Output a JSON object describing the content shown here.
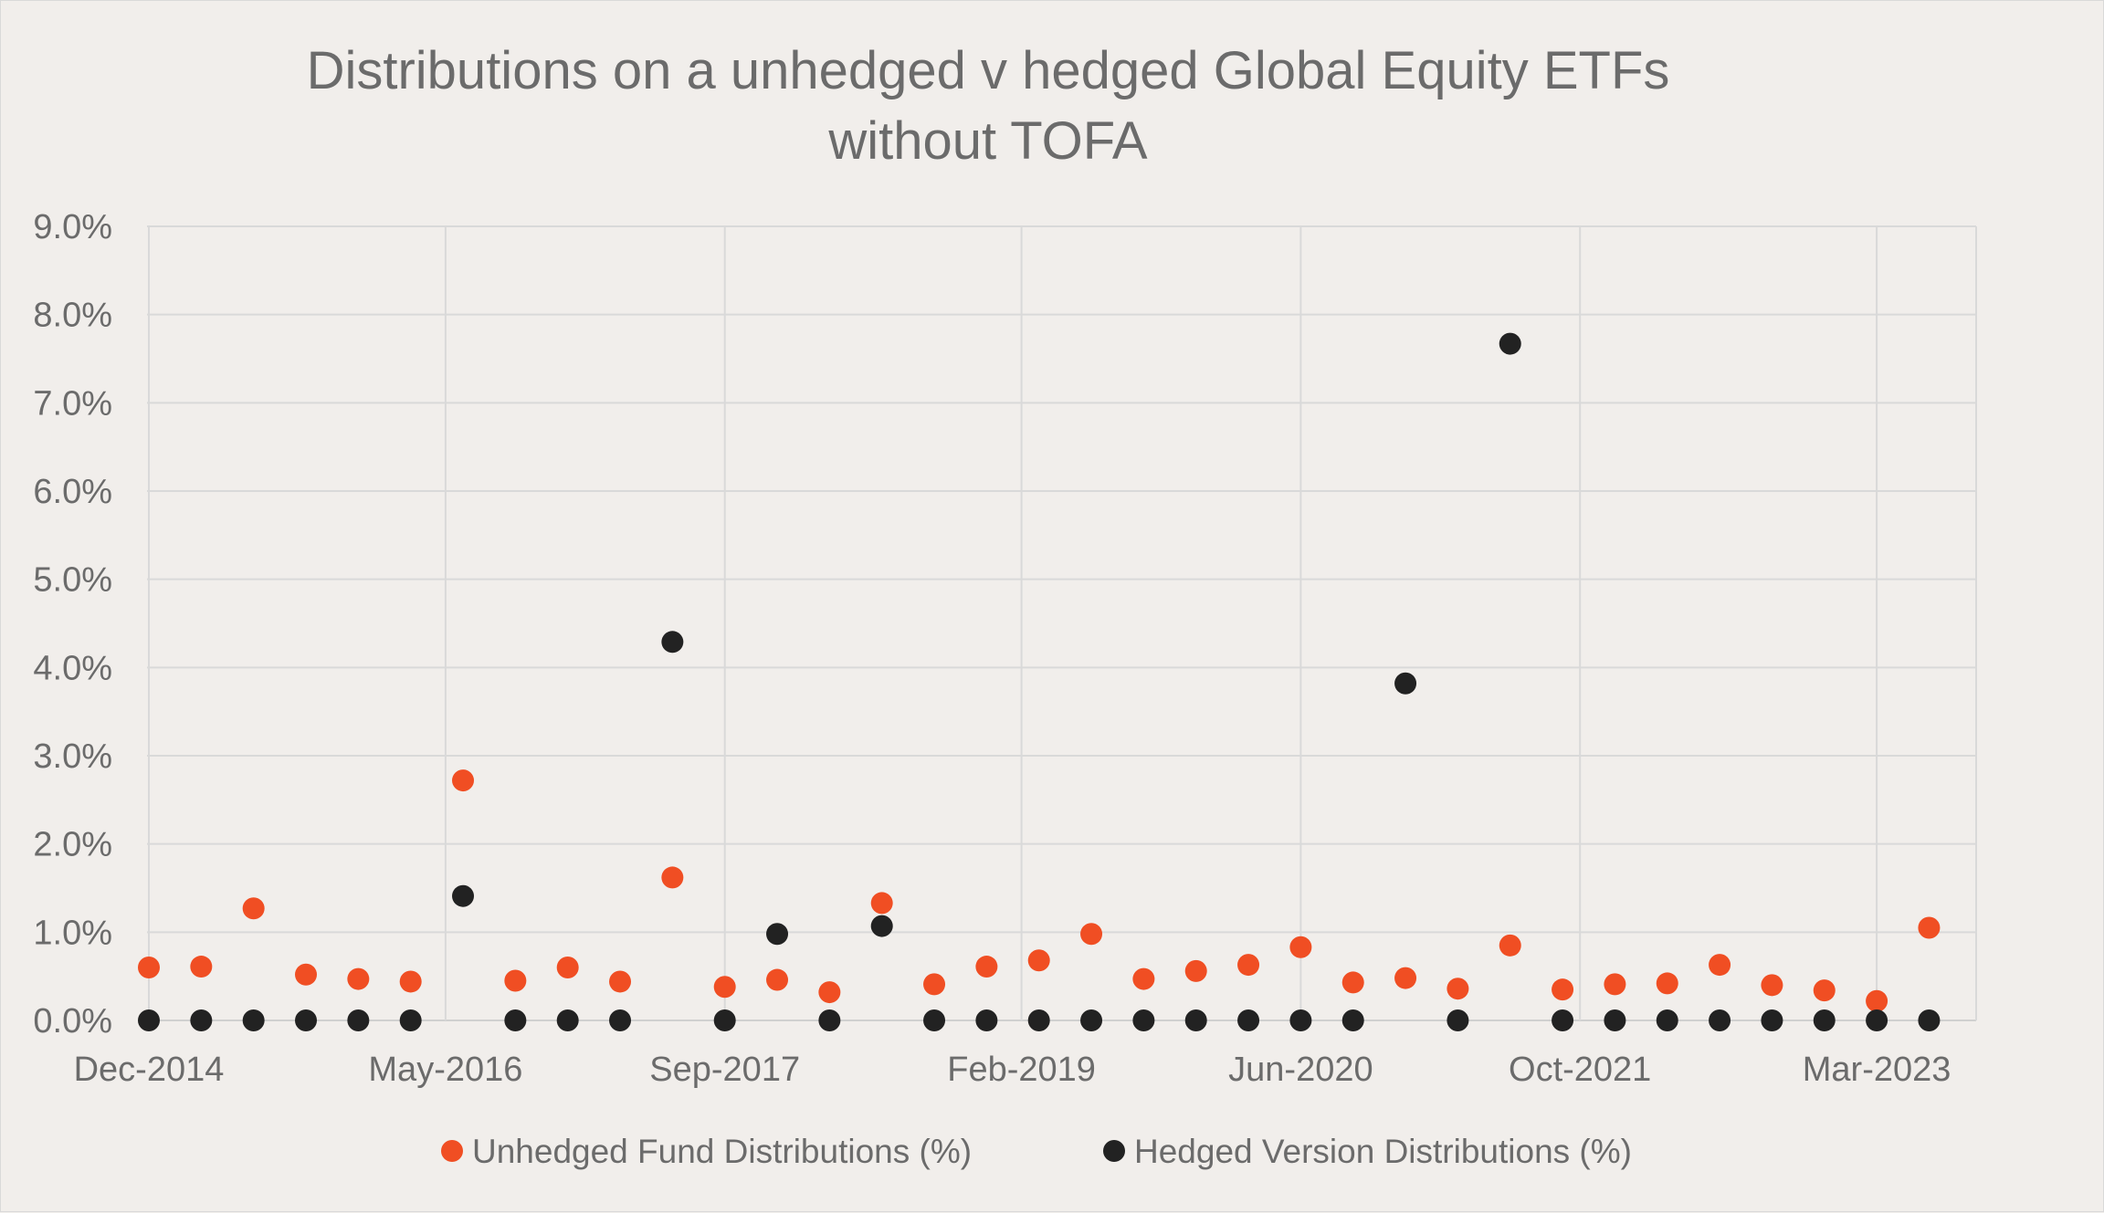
{
  "chart_data": {
    "type": "scatter",
    "title": [
      "Distributions on a unhedged v hedged Global Equity ETFs",
      "without TOFA"
    ],
    "xlabel": "",
    "ylabel": "",
    "ylim": [
      0,
      9
    ],
    "yticks": [
      "0.0%",
      "1.0%",
      "2.0%",
      "3.0%",
      "4.0%",
      "5.0%",
      "6.0%",
      "7.0%",
      "8.0%",
      "9.0%"
    ],
    "xticks": [
      "Dec-2014",
      "May-2016",
      "Sep-2017",
      "Feb-2019",
      "Jun-2020",
      "Oct-2021",
      "Mar-2023"
    ],
    "x_unit": "quarter",
    "x_start": "Dec-2014",
    "grid": "both",
    "legend_position": "bottom",
    "series": [
      {
        "name": "Unhedged Fund Distributions (%)",
        "color": "#f04e23",
        "x": [
          "Dec-2014",
          "Mar-2015",
          "Jun-2015",
          "Sep-2015",
          "Dec-2015",
          "Mar-2016",
          "Jun-2016",
          "Sep-2016",
          "Dec-2016",
          "Mar-2017",
          "Jun-2017",
          "Sep-2017",
          "Dec-2017",
          "Mar-2018",
          "Jun-2018",
          "Sep-2018",
          "Dec-2018",
          "Mar-2019",
          "Jun-2019",
          "Sep-2019",
          "Dec-2019",
          "Mar-2020",
          "Jun-2020",
          "Sep-2020",
          "Dec-2020",
          "Mar-2021",
          "Jun-2021",
          "Sep-2021",
          "Dec-2021",
          "Mar-2022",
          "Jun-2022",
          "Sep-2022",
          "Dec-2022",
          "Mar-2023",
          "Jun-2023"
        ],
        "values": [
          0.6,
          0.61,
          1.27,
          0.52,
          0.47,
          0.44,
          2.72,
          0.45,
          0.6,
          0.44,
          1.62,
          0.38,
          0.46,
          0.32,
          1.33,
          0.41,
          0.61,
          0.68,
          0.98,
          0.47,
          0.56,
          0.63,
          0.83,
          0.43,
          0.48,
          0.36,
          0.85,
          0.35,
          0.41,
          0.42,
          0.63,
          0.4,
          0.34,
          0.22,
          1.05
        ]
      },
      {
        "name": "Hedged Version Distributions (%)",
        "color": "#222222",
        "x": [
          "Dec-2014",
          "Mar-2015",
          "Jun-2015",
          "Sep-2015",
          "Dec-2015",
          "Mar-2016",
          "Jun-2016",
          "Sep-2016",
          "Dec-2016",
          "Mar-2017",
          "Jun-2017",
          "Sep-2017",
          "Dec-2017",
          "Mar-2018",
          "Jun-2018",
          "Sep-2018",
          "Dec-2018",
          "Mar-2019",
          "Jun-2019",
          "Sep-2019",
          "Dec-2019",
          "Mar-2020",
          "Jun-2020",
          "Sep-2020",
          "Dec-2020",
          "Mar-2021",
          "Jun-2021",
          "Sep-2021",
          "Dec-2021",
          "Mar-2022",
          "Jun-2022",
          "Sep-2022",
          "Dec-2022",
          "Mar-2023",
          "Jun-2023"
        ],
        "values": [
          0.0,
          0.0,
          0.0,
          0.0,
          0.0,
          0.0,
          1.41,
          0.0,
          0.0,
          0.0,
          4.29,
          0.0,
          0.98,
          0.0,
          1.07,
          0.0,
          0.0,
          0.0,
          0.0,
          0.0,
          0.0,
          0.0,
          0.0,
          0.0,
          3.82,
          0.0,
          7.67,
          0.0,
          0.0,
          0.0,
          0.0,
          0.0,
          0.0,
          0.0,
          0.0
        ]
      }
    ]
  }
}
